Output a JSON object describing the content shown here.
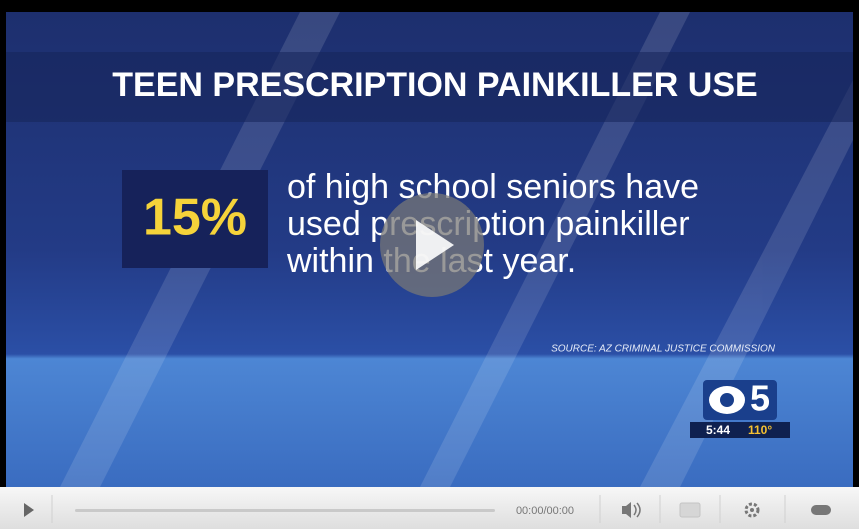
{
  "video": {
    "title": "TEEN PRESCRIPTION PAINKILLER USE",
    "stat": "15%",
    "body_lines": [
      "of high school seniors have",
      "used prescription painkiller",
      "within the last year."
    ],
    "source": "SOURCE: AZ CRIMINAL JUSTICE COMMISSION",
    "logo_channel": "5",
    "clock": "5:44",
    "temperature": "110°"
  },
  "controls": {
    "time": "00:00/00:00"
  }
}
